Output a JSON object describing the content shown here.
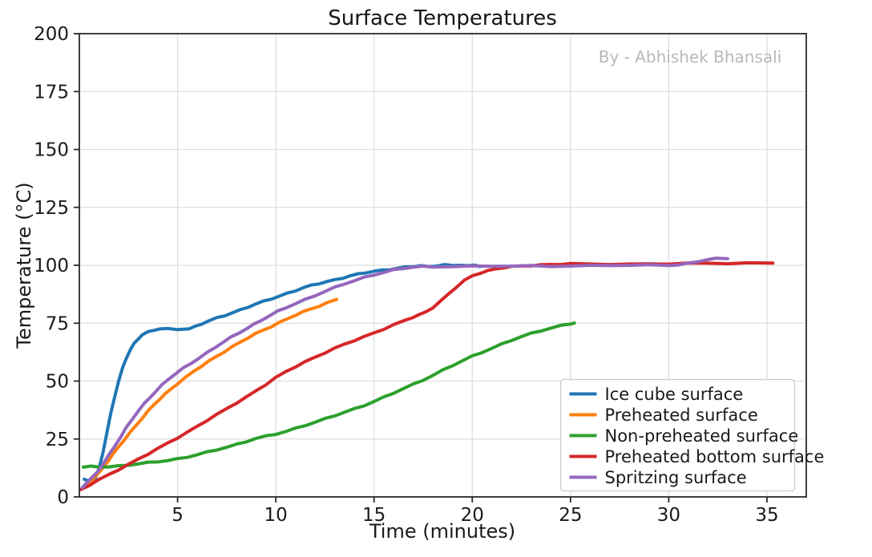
{
  "title": "Surface Temperatures",
  "watermark": "By - Abhishek Bhansali",
  "chart_data": {
    "type": "line",
    "title": "Surface Temperatures",
    "xlabel": "Time (minutes)",
    "ylabel": "Temperature (°C)",
    "xlim": [
      0,
      37
    ],
    "ylim": [
      0,
      200
    ],
    "xticks": [
      5,
      10,
      15,
      20,
      25,
      30,
      35
    ],
    "yticks": [
      0,
      25,
      50,
      75,
      100,
      125,
      150,
      175,
      200
    ],
    "grid": true,
    "grid_color": "#dedede",
    "spine_color": "#2a2a2a",
    "legend_position": "lower right",
    "series": [
      {
        "name": "Ice cube surface",
        "color": "#1f77b4",
        "points": [
          [
            0.25,
            7.6
          ],
          [
            0.4,
            7.0
          ],
          [
            0.6,
            6.2
          ],
          [
            0.8,
            7.6
          ],
          [
            1.0,
            12.0
          ],
          [
            1.2,
            19.0
          ],
          [
            1.4,
            27.5
          ],
          [
            1.6,
            36.0
          ],
          [
            1.8,
            43.5
          ],
          [
            2.0,
            50.0
          ],
          [
            2.2,
            55.5
          ],
          [
            2.4,
            60.0
          ],
          [
            2.6,
            63.5
          ],
          [
            2.8,
            66.3
          ],
          [
            3.0,
            68.4
          ],
          [
            3.2,
            70.0
          ],
          [
            3.5,
            71.2
          ],
          [
            3.8,
            72.0
          ],
          [
            4.1,
            72.4
          ],
          [
            4.5,
            72.5
          ],
          [
            5.0,
            72.5
          ],
          [
            5.6,
            72.7
          ],
          [
            5.9,
            73.6
          ],
          [
            6.2,
            74.6
          ],
          [
            6.6,
            75.9
          ],
          [
            7.0,
            77.2
          ],
          [
            7.4,
            78.4
          ],
          [
            7.8,
            79.6
          ],
          [
            8.2,
            80.8
          ],
          [
            8.6,
            82.0
          ],
          [
            9.0,
            83.2
          ],
          [
            9.4,
            84.4
          ],
          [
            9.8,
            85.6
          ],
          [
            10.2,
            86.8
          ],
          [
            10.6,
            88.0
          ],
          [
            11.0,
            89.1
          ],
          [
            11.4,
            90.2
          ],
          [
            11.8,
            91.2
          ],
          [
            12.2,
            92.1
          ],
          [
            12.6,
            93.0
          ],
          [
            13.0,
            93.8
          ],
          [
            13.4,
            94.6
          ],
          [
            13.8,
            95.4
          ],
          [
            14.2,
            96.1
          ],
          [
            14.6,
            96.8
          ],
          [
            15.0,
            97.4
          ],
          [
            15.4,
            97.9
          ],
          [
            15.8,
            98.3
          ],
          [
            16.2,
            98.7
          ],
          [
            16.6,
            99.1
          ],
          [
            17.0,
            99.5
          ],
          [
            17.4,
            99.8
          ],
          [
            17.8,
            99.4
          ],
          [
            18.2,
            100.0
          ],
          [
            18.6,
            100.3
          ],
          [
            19.0,
            99.7
          ],
          [
            19.4,
            100.1
          ],
          [
            19.8,
            99.7
          ],
          [
            20.1,
            100.0
          ],
          [
            20.4,
            99.8
          ]
        ]
      },
      {
        "name": "Preheated surface",
        "color": "#ff7f0e",
        "points": [
          [
            0.2,
            4.0
          ],
          [
            0.5,
            6.0
          ],
          [
            0.8,
            8.6
          ],
          [
            1.1,
            11.6
          ],
          [
            1.4,
            14.8
          ],
          [
            1.7,
            18.2
          ],
          [
            2.0,
            21.5
          ],
          [
            2.3,
            24.8
          ],
          [
            2.6,
            28.0
          ],
          [
            2.9,
            31.1
          ],
          [
            3.2,
            34.1
          ],
          [
            3.5,
            37.0
          ],
          [
            3.8,
            39.7
          ],
          [
            4.1,
            42.3
          ],
          [
            4.4,
            44.7
          ],
          [
            4.7,
            46.9
          ],
          [
            5.0,
            49.0
          ],
          [
            5.4,
            51.5
          ],
          [
            5.8,
            54.0
          ],
          [
            6.2,
            56.3
          ],
          [
            6.6,
            58.6
          ],
          [
            7.0,
            60.8
          ],
          [
            7.4,
            62.9
          ],
          [
            7.8,
            64.9
          ],
          [
            8.2,
            66.8
          ],
          [
            8.6,
            68.7
          ],
          [
            9.0,
            70.5
          ],
          [
            9.4,
            72.2
          ],
          [
            9.8,
            73.8
          ],
          [
            10.2,
            75.4
          ],
          [
            10.6,
            76.9
          ],
          [
            11.0,
            78.4
          ],
          [
            11.4,
            79.8
          ],
          [
            11.8,
            81.2
          ],
          [
            12.2,
            82.5
          ],
          [
            12.6,
            83.8
          ],
          [
            13.0,
            85.0
          ],
          [
            13.1,
            85.4
          ]
        ]
      },
      {
        "name": "Non-preheated surface",
        "color": "#2ca02c",
        "points": [
          [
            0.2,
            12.8
          ],
          [
            0.6,
            13.0
          ],
          [
            1.0,
            13.0
          ],
          [
            1.5,
            13.1
          ],
          [
            2.0,
            13.4
          ],
          [
            2.5,
            13.8
          ],
          [
            3.0,
            14.2
          ],
          [
            3.5,
            14.7
          ],
          [
            4.0,
            15.2
          ],
          [
            4.5,
            15.8
          ],
          [
            5.0,
            16.5
          ],
          [
            5.5,
            17.3
          ],
          [
            6.0,
            18.2
          ],
          [
            6.5,
            19.2
          ],
          [
            7.0,
            20.3
          ],
          [
            7.5,
            21.5
          ],
          [
            8.0,
            22.7
          ],
          [
            8.5,
            24.0
          ],
          [
            9.0,
            25.3
          ],
          [
            9.5,
            26.1
          ],
          [
            10.0,
            27.0
          ],
          [
            10.5,
            28.2
          ],
          [
            11.0,
            29.6
          ],
          [
            11.5,
            31.0
          ],
          [
            12.0,
            32.3
          ],
          [
            12.5,
            33.6
          ],
          [
            13.0,
            35.0
          ],
          [
            13.5,
            36.5
          ],
          [
            14.0,
            38.0
          ],
          [
            14.5,
            39.6
          ],
          [
            15.0,
            41.3
          ],
          [
            15.5,
            43.0
          ],
          [
            16.0,
            44.8
          ],
          [
            16.5,
            46.7
          ],
          [
            17.0,
            48.6
          ],
          [
            17.5,
            50.6
          ],
          [
            18.0,
            52.6
          ],
          [
            18.5,
            54.7
          ],
          [
            19.0,
            56.7
          ],
          [
            19.5,
            58.7
          ],
          [
            20.0,
            60.7
          ],
          [
            20.5,
            62.5
          ],
          [
            21.0,
            64.3
          ],
          [
            21.5,
            66.0
          ],
          [
            22.0,
            67.6
          ],
          [
            22.5,
            69.1
          ],
          [
            23.0,
            70.5
          ],
          [
            23.5,
            71.8
          ],
          [
            24.0,
            73.0
          ],
          [
            24.5,
            74.0
          ],
          [
            25.0,
            74.8
          ],
          [
            25.2,
            75.0
          ]
        ]
      },
      {
        "name": "Preheated bottom surface",
        "color": "#d62728",
        "points": [
          [
            0.05,
            3.0
          ],
          [
            0.5,
            5.0
          ],
          [
            1.0,
            7.3
          ],
          [
            1.5,
            9.6
          ],
          [
            2.0,
            11.9
          ],
          [
            2.5,
            14.1
          ],
          [
            3.0,
            16.3
          ],
          [
            3.5,
            18.5
          ],
          [
            4.0,
            20.8
          ],
          [
            4.5,
            23.2
          ],
          [
            5.0,
            25.6
          ],
          [
            5.5,
            28.0
          ],
          [
            6.0,
            30.5
          ],
          [
            6.5,
            33.0
          ],
          [
            7.0,
            35.5
          ],
          [
            7.5,
            38.0
          ],
          [
            8.0,
            40.6
          ],
          [
            8.5,
            43.2
          ],
          [
            9.0,
            45.9
          ],
          [
            9.5,
            48.6
          ],
          [
            10.0,
            51.4
          ],
          [
            10.5,
            53.9
          ],
          [
            11.0,
            56.2
          ],
          [
            11.5,
            58.4
          ],
          [
            12.0,
            60.4
          ],
          [
            12.5,
            62.3
          ],
          [
            13.0,
            64.1
          ],
          [
            13.5,
            65.8
          ],
          [
            14.0,
            67.5
          ],
          [
            14.5,
            69.2
          ],
          [
            15.0,
            70.9
          ],
          [
            15.5,
            72.6
          ],
          [
            16.0,
            74.2
          ],
          [
            16.5,
            75.9
          ],
          [
            17.0,
            77.6
          ],
          [
            17.3,
            78.6
          ],
          [
            17.6,
            79.8
          ],
          [
            18.0,
            81.9
          ],
          [
            18.4,
            84.6
          ],
          [
            18.8,
            87.6
          ],
          [
            19.2,
            90.6
          ],
          [
            19.6,
            93.4
          ],
          [
            20.0,
            95.5
          ],
          [
            20.4,
            96.8
          ],
          [
            20.8,
            97.7
          ],
          [
            21.2,
            98.4
          ],
          [
            21.6,
            98.9
          ],
          [
            22.0,
            99.3
          ],
          [
            22.5,
            99.7
          ],
          [
            23.0,
            100.0
          ],
          [
            23.5,
            100.2
          ],
          [
            24.0,
            100.3
          ],
          [
            24.5,
            100.4
          ],
          [
            25.0,
            100.5
          ],
          [
            26.0,
            100.5
          ],
          [
            27.0,
            100.6
          ],
          [
            28.0,
            100.5
          ],
          [
            29.0,
            100.6
          ],
          [
            30.0,
            100.6
          ],
          [
            31.0,
            100.7
          ],
          [
            32.0,
            100.8
          ],
          [
            33.0,
            100.9
          ],
          [
            34.0,
            101.0
          ],
          [
            35.3,
            101.0
          ]
        ]
      },
      {
        "name": "Spritzing surface",
        "color": "#9467bd",
        "points": [
          [
            0.15,
            4.2
          ],
          [
            0.5,
            7.0
          ],
          [
            0.9,
            10.6
          ],
          [
            1.2,
            14.0
          ],
          [
            1.5,
            18.0
          ],
          [
            1.8,
            22.0
          ],
          [
            2.1,
            26.0
          ],
          [
            2.4,
            30.0
          ],
          [
            2.7,
            33.6
          ],
          [
            3.0,
            37.0
          ],
          [
            3.3,
            40.1
          ],
          [
            3.6,
            43.0
          ],
          [
            3.9,
            45.8
          ],
          [
            4.2,
            48.3
          ],
          [
            4.5,
            50.6
          ],
          [
            4.9,
            53.1
          ],
          [
            5.3,
            55.5
          ],
          [
            5.7,
            57.8
          ],
          [
            6.1,
            60.1
          ],
          [
            6.5,
            62.3
          ],
          [
            6.9,
            64.5
          ],
          [
            7.3,
            66.6
          ],
          [
            7.7,
            68.7
          ],
          [
            8.1,
            70.7
          ],
          [
            8.5,
            72.7
          ],
          [
            8.9,
            74.6
          ],
          [
            9.3,
            76.5
          ],
          [
            9.7,
            78.3
          ],
          [
            10.1,
            80.0
          ],
          [
            10.5,
            81.6
          ],
          [
            11.0,
            83.5
          ],
          [
            11.5,
            85.3
          ],
          [
            12.0,
            87.0
          ],
          [
            12.5,
            88.7
          ],
          [
            13.0,
            90.3
          ],
          [
            13.5,
            91.9
          ],
          [
            14.0,
            93.4
          ],
          [
            14.5,
            94.8
          ],
          [
            15.0,
            96.0
          ],
          [
            15.5,
            97.0
          ],
          [
            16.0,
            97.9
          ],
          [
            16.5,
            98.6
          ],
          [
            17.0,
            99.2
          ],
          [
            17.5,
            99.5
          ],
          [
            18.0,
            99.5
          ],
          [
            19.0,
            99.5
          ],
          [
            20.0,
            99.5
          ],
          [
            21.0,
            99.6
          ],
          [
            22.0,
            99.6
          ],
          [
            23.0,
            99.7
          ],
          [
            24.0,
            99.7
          ],
          [
            25.0,
            99.8
          ],
          [
            26.0,
            99.8
          ],
          [
            27.0,
            99.9
          ],
          [
            28.0,
            99.9
          ],
          [
            29.0,
            100.0
          ],
          [
            30.0,
            100.1
          ],
          [
            30.5,
            100.3
          ],
          [
            31.0,
            100.8
          ],
          [
            31.5,
            101.6
          ],
          [
            32.0,
            102.4
          ],
          [
            32.4,
            102.8
          ],
          [
            32.8,
            103.1
          ],
          [
            33.0,
            103.0
          ]
        ]
      }
    ]
  }
}
